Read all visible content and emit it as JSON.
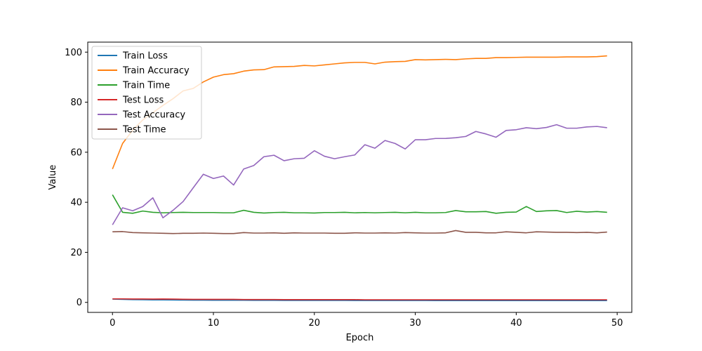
{
  "chart_data": {
    "type": "line",
    "title": "",
    "xlabel": "Epoch",
    "ylabel": "Value",
    "xlim": [
      -2.45,
      51.45
    ],
    "ylim": [
      -4,
      104
    ],
    "xticks": [
      0,
      10,
      20,
      30,
      40,
      50
    ],
    "yticks": [
      0,
      20,
      40,
      60,
      80,
      100
    ],
    "grid": false,
    "legend_position": "top-left",
    "x": [
      0,
      1,
      2,
      3,
      4,
      5,
      6,
      7,
      8,
      9,
      10,
      11,
      12,
      13,
      14,
      15,
      16,
      17,
      18,
      19,
      20,
      21,
      22,
      23,
      24,
      25,
      26,
      27,
      28,
      29,
      30,
      31,
      32,
      33,
      34,
      35,
      36,
      37,
      38,
      39,
      40,
      41,
      42,
      43,
      44,
      45,
      46,
      47,
      48,
      49
    ],
    "series": [
      {
        "name": "Train Loss",
        "color": "#1f77b4",
        "values": [
          1.3,
          1.2,
          1.1,
          1.05,
          1.0,
          0.98,
          0.95,
          0.92,
          0.9,
          0.88,
          0.87,
          0.86,
          0.85,
          0.84,
          0.83,
          0.82,
          0.81,
          0.8,
          0.8,
          0.79,
          0.78,
          0.78,
          0.77,
          0.77,
          0.76,
          0.76,
          0.75,
          0.75,
          0.75,
          0.74,
          0.74,
          0.74,
          0.73,
          0.73,
          0.73,
          0.72,
          0.72,
          0.72,
          0.72,
          0.71,
          0.71,
          0.71,
          0.71,
          0.7,
          0.7,
          0.7,
          0.7,
          0.7,
          0.7,
          0.7
        ]
      },
      {
        "name": "Train Accuracy",
        "color": "#ff7f0e",
        "values": [
          53.3,
          63.5,
          68.8,
          72.9,
          75.8,
          78.7,
          81.4,
          84.5,
          85.5,
          88.1,
          90.0,
          91.0,
          91.4,
          92.4,
          92.9,
          93.0,
          94.1,
          94.2,
          94.3,
          94.7,
          94.5,
          94.9,
          95.3,
          95.7,
          95.9,
          95.9,
          95.3,
          96.0,
          96.2,
          96.3,
          97.0,
          96.9,
          97.0,
          97.1,
          97.0,
          97.3,
          97.5,
          97.5,
          97.8,
          97.8,
          97.9,
          98.0,
          98.0,
          98.0,
          98.0,
          98.1,
          98.1,
          98.1,
          98.2,
          98.5
        ]
      },
      {
        "name": "Train Time",
        "color": "#2ca02c",
        "values": [
          43.0,
          36.0,
          35.6,
          36.5,
          36.0,
          35.8,
          35.9,
          36.0,
          35.9,
          35.9,
          35.9,
          35.8,
          35.8,
          36.8,
          36.0,
          35.7,
          35.9,
          36.0,
          35.8,
          35.8,
          35.7,
          35.9,
          35.9,
          36.0,
          35.8,
          35.9,
          35.8,
          35.9,
          36.0,
          35.8,
          36.0,
          35.8,
          35.8,
          35.9,
          36.7,
          36.2,
          36.2,
          36.3,
          35.6,
          36.0,
          36.1,
          38.3,
          36.3,
          36.6,
          36.7,
          35.9,
          36.4,
          36.1,
          36.3,
          36.0
        ]
      },
      {
        "name": "Test Loss",
        "color": "#d62728",
        "values": [
          1.4,
          1.4,
          1.35,
          1.35,
          1.3,
          1.35,
          1.3,
          1.25,
          1.2,
          1.2,
          1.2,
          1.2,
          1.2,
          1.15,
          1.15,
          1.15,
          1.15,
          1.1,
          1.1,
          1.1,
          1.1,
          1.1,
          1.1,
          1.1,
          1.1,
          1.05,
          1.05,
          1.05,
          1.05,
          1.05,
          1.05,
          1.05,
          1.05,
          1.05,
          1.05,
          1.05,
          1.05,
          1.05,
          1.05,
          1.05,
          1.05,
          1.05,
          1.05,
          1.05,
          1.05,
          1.05,
          1.05,
          1.05,
          1.05,
          1.05
        ]
      },
      {
        "name": "Test Accuracy",
        "color": "#9467bd",
        "values": [
          31.0,
          37.8,
          36.6,
          38.3,
          41.8,
          33.8,
          36.8,
          40.3,
          45.8,
          51.2,
          49.5,
          50.5,
          46.9,
          53.3,
          54.7,
          58.2,
          58.8,
          56.6,
          57.4,
          57.6,
          60.6,
          58.4,
          57.4,
          58.2,
          58.9,
          63.0,
          61.6,
          64.7,
          63.5,
          61.3,
          65.0,
          65.0,
          65.5,
          65.5,
          65.8,
          66.3,
          68.3,
          67.3,
          66.0,
          68.7,
          69.0,
          69.8,
          69.4,
          69.9,
          71.0,
          69.6,
          69.6,
          70.1,
          70.3,
          69.8
        ]
      },
      {
        "name": "Test Time",
        "color": "#8c564b",
        "values": [
          28.2,
          28.3,
          27.9,
          27.8,
          27.7,
          27.6,
          27.5,
          27.6,
          27.6,
          27.7,
          27.6,
          27.5,
          27.5,
          27.9,
          27.7,
          27.7,
          27.8,
          27.6,
          27.8,
          27.7,
          27.7,
          27.7,
          27.6,
          27.6,
          27.8,
          27.7,
          27.7,
          27.8,
          27.7,
          27.9,
          27.8,
          27.7,
          27.7,
          27.8,
          28.7,
          28.0,
          28.0,
          27.8,
          27.8,
          28.2,
          28.0,
          27.8,
          28.2,
          28.1,
          28.0,
          28.0,
          27.9,
          28.0,
          27.8,
          28.1
        ]
      }
    ]
  }
}
